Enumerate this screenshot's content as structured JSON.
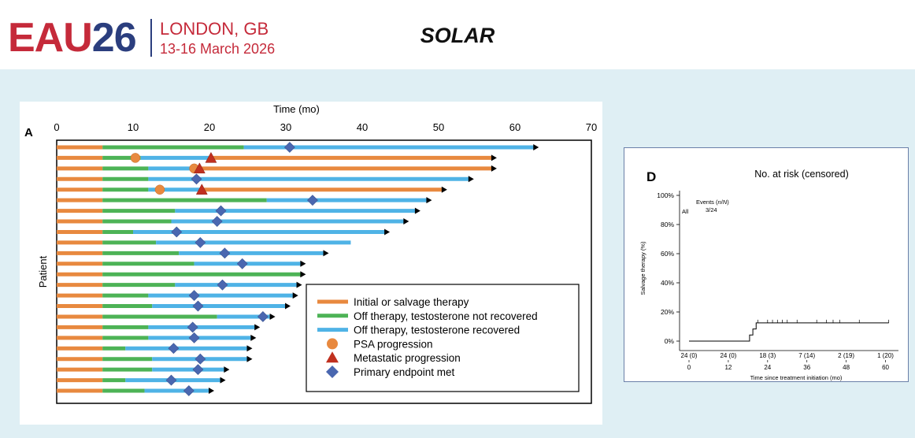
{
  "header": {
    "logo_eau": "EAU",
    "logo_year": "26",
    "logo_city": "LONDON, GB",
    "logo_dates": "13-16 March 2026",
    "slide_title": "SOLAR"
  },
  "colors": {
    "initial": "#e8893f",
    "off_not_recovered": "#4db356",
    "off_recovered": "#4fb3e6",
    "psa": "#e8893f",
    "metastatic": "#c0301f",
    "endpoint": "#4a67b0",
    "brand_red": "#c52a3a",
    "brand_navy": "#2b3e7e"
  },
  "chart_data": [
    {
      "panel": "A",
      "type": "swimmer",
      "xlabel": "Time (mo)",
      "ylabel": "Patient",
      "xlim": [
        0,
        70
      ],
      "xticks": [
        0,
        10,
        20,
        30,
        40,
        50,
        60,
        70
      ],
      "legend_position": "bottom-right",
      "legend": [
        {
          "key": "initial",
          "label": "Initial or salvage therapy",
          "shape": "line"
        },
        {
          "key": "off_nr",
          "label": "Off therapy, testosterone not recovered",
          "shape": "line"
        },
        {
          "key": "off_r",
          "label": "Off therapy, testosterone recovered",
          "shape": "line"
        },
        {
          "key": "psa",
          "label": "PSA progression",
          "shape": "circle"
        },
        {
          "key": "met",
          "label": "Metastatic progression",
          "shape": "triangle"
        },
        {
          "key": "ep",
          "label": "Primary endpoint met",
          "shape": "diamond"
        }
      ],
      "patients": [
        {
          "segments": [
            {
              "t": "initial",
              "from": 0,
              "to": 6
            },
            {
              "t": "off_nr",
              "from": 6,
              "to": 24.5
            },
            {
              "t": "off_r",
              "from": 24.5,
              "to": 62.5
            }
          ],
          "events": [
            {
              "t": "ep",
              "x": 30.5
            }
          ],
          "ongoing": true
        },
        {
          "segments": [
            {
              "t": "initial",
              "from": 0,
              "to": 6
            },
            {
              "t": "off_nr",
              "from": 6,
              "to": 11
            },
            {
              "t": "off_r",
              "from": 11,
              "to": 20
            },
            {
              "t": "initial",
              "from": 20,
              "to": 57
            }
          ],
          "events": [
            {
              "t": "psa",
              "x": 10.3
            },
            {
              "t": "met",
              "x": 20.2
            }
          ],
          "ongoing": true
        },
        {
          "segments": [
            {
              "t": "initial",
              "from": 0,
              "to": 6
            },
            {
              "t": "off_nr",
              "from": 6,
              "to": 12
            },
            {
              "t": "off_r",
              "from": 12,
              "to": 18
            },
            {
              "t": "initial",
              "from": 18,
              "to": 57
            }
          ],
          "events": [
            {
              "t": "psa",
              "x": 18
            },
            {
              "t": "met",
              "x": 18.7
            }
          ],
          "ongoing": true
        },
        {
          "segments": [
            {
              "t": "initial",
              "from": 0,
              "to": 6
            },
            {
              "t": "off_nr",
              "from": 6,
              "to": 12
            },
            {
              "t": "off_r",
              "from": 12,
              "to": 54
            }
          ],
          "events": [
            {
              "t": "ep",
              "x": 18.3
            }
          ],
          "ongoing": true
        },
        {
          "segments": [
            {
              "t": "initial",
              "from": 0,
              "to": 6
            },
            {
              "t": "off_nr",
              "from": 6,
              "to": 12
            },
            {
              "t": "off_r",
              "from": 12,
              "to": 19
            },
            {
              "t": "initial",
              "from": 19,
              "to": 50.5
            }
          ],
          "events": [
            {
              "t": "psa",
              "x": 13.5
            },
            {
              "t": "met",
              "x": 19
            }
          ],
          "ongoing": true
        },
        {
          "segments": [
            {
              "t": "initial",
              "from": 0,
              "to": 6
            },
            {
              "t": "off_nr",
              "from": 6,
              "to": 27.5
            },
            {
              "t": "off_r",
              "from": 27.5,
              "to": 48.5
            }
          ],
          "events": [
            {
              "t": "ep",
              "x": 33.5
            }
          ],
          "ongoing": true
        },
        {
          "segments": [
            {
              "t": "initial",
              "from": 0,
              "to": 6
            },
            {
              "t": "off_nr",
              "from": 6,
              "to": 15.5
            },
            {
              "t": "off_r",
              "from": 15.5,
              "to": 47
            }
          ],
          "events": [
            {
              "t": "ep",
              "x": 21.5
            }
          ],
          "ongoing": true
        },
        {
          "segments": [
            {
              "t": "initial",
              "from": 0,
              "to": 6
            },
            {
              "t": "off_nr",
              "from": 6,
              "to": 15
            },
            {
              "t": "off_r",
              "from": 15,
              "to": 45.5
            }
          ],
          "events": [
            {
              "t": "ep",
              "x": 21
            }
          ],
          "ongoing": true
        },
        {
          "segments": [
            {
              "t": "initial",
              "from": 0,
              "to": 6
            },
            {
              "t": "off_nr",
              "from": 6,
              "to": 10
            },
            {
              "t": "off_r",
              "from": 10,
              "to": 43
            }
          ],
          "events": [
            {
              "t": "ep",
              "x": 15.7
            }
          ],
          "ongoing": true
        },
        {
          "segments": [
            {
              "t": "initial",
              "from": 0,
              "to": 6
            },
            {
              "t": "off_nr",
              "from": 6,
              "to": 13
            },
            {
              "t": "off_r",
              "from": 13,
              "to": 38.5
            }
          ],
          "events": [
            {
              "t": "ep",
              "x": 18.8
            }
          ],
          "ongoing": false
        },
        {
          "segments": [
            {
              "t": "initial",
              "from": 0,
              "to": 6
            },
            {
              "t": "off_nr",
              "from": 6,
              "to": 16
            },
            {
              "t": "off_r",
              "from": 16,
              "to": 35
            }
          ],
          "events": [
            {
              "t": "ep",
              "x": 22
            }
          ],
          "ongoing": true
        },
        {
          "segments": [
            {
              "t": "initial",
              "from": 0,
              "to": 6
            },
            {
              "t": "off_nr",
              "from": 6,
              "to": 18
            },
            {
              "t": "off_r",
              "from": 18,
              "to": 32
            }
          ],
          "events": [
            {
              "t": "ep",
              "x": 24.3
            }
          ],
          "ongoing": true
        },
        {
          "segments": [
            {
              "t": "initial",
              "from": 0,
              "to": 6
            },
            {
              "t": "off_nr",
              "from": 6,
              "to": 32
            }
          ],
          "events": [],
          "ongoing": true
        },
        {
          "segments": [
            {
              "t": "initial",
              "from": 0,
              "to": 6
            },
            {
              "t": "off_nr",
              "from": 6,
              "to": 15.5
            },
            {
              "t": "off_r",
              "from": 15.5,
              "to": 31.5
            }
          ],
          "events": [
            {
              "t": "ep",
              "x": 21.7
            }
          ],
          "ongoing": true
        },
        {
          "segments": [
            {
              "t": "initial",
              "from": 0,
              "to": 6
            },
            {
              "t": "off_nr",
              "from": 6,
              "to": 12
            },
            {
              "t": "off_r",
              "from": 12,
              "to": 31
            }
          ],
          "events": [
            {
              "t": "ep",
              "x": 18
            }
          ],
          "ongoing": true
        },
        {
          "segments": [
            {
              "t": "initial",
              "from": 0,
              "to": 6
            },
            {
              "t": "off_nr",
              "from": 6,
              "to": 12.5
            },
            {
              "t": "off_r",
              "from": 12.5,
              "to": 30
            }
          ],
          "events": [
            {
              "t": "ep",
              "x": 18.5
            }
          ],
          "ongoing": true
        },
        {
          "segments": [
            {
              "t": "initial",
              "from": 0,
              "to": 6
            },
            {
              "t": "off_nr",
              "from": 6,
              "to": 21
            },
            {
              "t": "off_r",
              "from": 21,
              "to": 28
            }
          ],
          "events": [
            {
              "t": "ep",
              "x": 27
            }
          ],
          "ongoing": true
        },
        {
          "segments": [
            {
              "t": "initial",
              "from": 0,
              "to": 6
            },
            {
              "t": "off_nr",
              "from": 6,
              "to": 12
            },
            {
              "t": "off_r",
              "from": 12,
              "to": 26
            }
          ],
          "events": [
            {
              "t": "ep",
              "x": 17.8
            }
          ],
          "ongoing": true
        },
        {
          "segments": [
            {
              "t": "initial",
              "from": 0,
              "to": 6
            },
            {
              "t": "off_nr",
              "from": 6,
              "to": 12
            },
            {
              "t": "off_r",
              "from": 12,
              "to": 25.5
            }
          ],
          "events": [
            {
              "t": "ep",
              "x": 18
            }
          ],
          "ongoing": true
        },
        {
          "segments": [
            {
              "t": "initial",
              "from": 0,
              "to": 6
            },
            {
              "t": "off_nr",
              "from": 6,
              "to": 9
            },
            {
              "t": "off_r",
              "from": 9,
              "to": 25
            }
          ],
          "events": [
            {
              "t": "ep",
              "x": 15.3
            }
          ],
          "ongoing": true
        },
        {
          "segments": [
            {
              "t": "initial",
              "from": 0,
              "to": 6
            },
            {
              "t": "off_nr",
              "from": 6,
              "to": 12.5
            },
            {
              "t": "off_r",
              "from": 12.5,
              "to": 25
            }
          ],
          "events": [
            {
              "t": "ep",
              "x": 18.8
            }
          ],
          "ongoing": true
        },
        {
          "segments": [
            {
              "t": "initial",
              "from": 0,
              "to": 6
            },
            {
              "t": "off_nr",
              "from": 6,
              "to": 12.5
            },
            {
              "t": "off_r",
              "from": 12.5,
              "to": 22
            }
          ],
          "events": [
            {
              "t": "ep",
              "x": 18.5
            }
          ],
          "ongoing": true
        },
        {
          "segments": [
            {
              "t": "initial",
              "from": 0,
              "to": 6
            },
            {
              "t": "off_nr",
              "from": 6,
              "to": 9
            },
            {
              "t": "off_r",
              "from": 9,
              "to": 21.5
            }
          ],
          "events": [
            {
              "t": "ep",
              "x": 15
            }
          ],
          "ongoing": true
        },
        {
          "segments": [
            {
              "t": "initial",
              "from": 0,
              "to": 6
            },
            {
              "t": "off_nr",
              "from": 6,
              "to": 11.5
            },
            {
              "t": "off_r",
              "from": 11.5,
              "to": 20
            }
          ],
          "events": [
            {
              "t": "ep",
              "x": 17.3
            }
          ],
          "ongoing": true
        }
      ]
    },
    {
      "panel": "D",
      "type": "line",
      "title": "No. at risk (censored)",
      "ylabel": "Salvage therapy (%)",
      "xlabel": "Time since treatment initiation (mo)",
      "xlim": [
        0,
        63
      ],
      "ylim": [
        0,
        100
      ],
      "xticks": [
        0,
        12,
        24,
        36,
        48,
        60
      ],
      "yticks": [
        0,
        20,
        40,
        60,
        80,
        100
      ],
      "ytick_labels": [
        "0%",
        "20%",
        "40%",
        "60%",
        "80%",
        "100%"
      ],
      "group_label": "All",
      "events_header": "Events (",
      "events_header_italic": "n",
      "events_header_sep": "/",
      "events_header_italic2": "N",
      "events_header_end": ")",
      "events_value": "3/24",
      "step_points": [
        [
          0,
          0
        ],
        [
          18.5,
          0
        ],
        [
          18.5,
          4.2
        ],
        [
          19.5,
          4.2
        ],
        [
          19.5,
          8.3
        ],
        [
          20.5,
          8.3
        ],
        [
          20.5,
          12.5
        ],
        [
          61,
          12.5
        ]
      ],
      "censor_ticks": [
        21,
        24,
        25.5,
        27,
        28.5,
        30,
        33,
        39,
        42,
        44,
        46,
        52,
        61
      ],
      "risk_table": [
        {
          "x": 0,
          "label": "24 (0)"
        },
        {
          "x": 12,
          "label": "24 (0)"
        },
        {
          "x": 24,
          "label": "18 (3)"
        },
        {
          "x": 36,
          "label": "7 (14)"
        },
        {
          "x": 48,
          "label": "2 (19)"
        },
        {
          "x": 60,
          "label": "1 (20)"
        }
      ]
    }
  ]
}
